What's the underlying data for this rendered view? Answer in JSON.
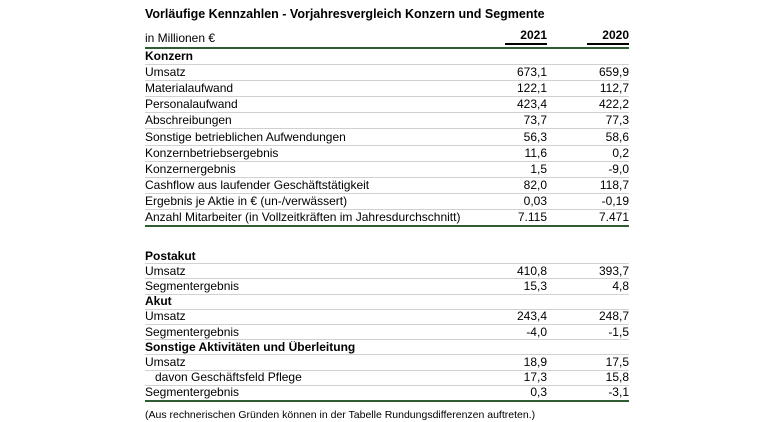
{
  "title": "Vorläufige Kennzahlen - Vorjahresvergleich Konzern und Segmente",
  "unit_label": "in Millionen €",
  "columns": [
    "2021",
    "2020"
  ],
  "colors": {
    "accent_line": "#2f5c33",
    "row_line": "#ccd4cb",
    "text": "#000000"
  },
  "blocks": [
    {
      "rows": [
        {
          "type": "section",
          "label": "Konzern",
          "v2021": "",
          "v2020": ""
        },
        {
          "type": "data",
          "label": "Umsatz",
          "v2021": "673,1",
          "v2020": "659,9"
        },
        {
          "type": "data",
          "label": "Materialaufwand",
          "v2021": "122,1",
          "v2020": "112,7"
        },
        {
          "type": "data",
          "label": "Personalaufwand",
          "v2021": "423,4",
          "v2020": "422,2"
        },
        {
          "type": "data",
          "label": "Abschreibungen",
          "v2021": "73,7",
          "v2020": "77,3"
        },
        {
          "type": "data",
          "label": "Sonstige betrieblichen Aufwendungen",
          "v2021": "56,3",
          "v2020": "58,6"
        },
        {
          "type": "data",
          "label": "Konzernbetriebsergebnis",
          "v2021": "11,6",
          "v2020": "0,2"
        },
        {
          "type": "data",
          "label": "Konzernergebnis",
          "v2021": "1,5",
          "v2020": "-9,0"
        },
        {
          "type": "data",
          "label": "Cashflow aus laufender Geschäftstätigkeit",
          "v2021": "82,0",
          "v2020": "118,7"
        },
        {
          "type": "data",
          "label": "Ergebnis je Aktie in € (un-/verwässert)",
          "v2021": "0,03",
          "v2020": "-0,19"
        },
        {
          "type": "data",
          "label": "Anzahl Mitarbeiter (in Vollzeitkräften im Jahresdurchschnitt)",
          "v2021": "7.115",
          "v2020": "7.471"
        }
      ]
    },
    {
      "rows": [
        {
          "type": "section",
          "label": "Postakut",
          "v2021": "",
          "v2020": ""
        },
        {
          "type": "data",
          "label": "Umsatz",
          "v2021": "410,8",
          "v2020": "393,7"
        },
        {
          "type": "data",
          "label": "Segmentergebnis",
          "v2021": "15,3",
          "v2020": "4,8"
        },
        {
          "type": "section",
          "label": "Akut",
          "v2021": "",
          "v2020": ""
        },
        {
          "type": "data",
          "label": "Umsatz",
          "v2021": "243,4",
          "v2020": "248,7"
        },
        {
          "type": "data",
          "label": "Segmentergebnis",
          "v2021": "-4,0",
          "v2020": "-1,5"
        },
        {
          "type": "section",
          "label": "Sonstige Aktivitäten und Überleitung",
          "v2021": "",
          "v2020": ""
        },
        {
          "type": "data",
          "label": "Umsatz",
          "v2021": "18,9",
          "v2020": "17,5"
        },
        {
          "type": "data",
          "label": "davon Geschäftsfeld Pflege",
          "indent": true,
          "v2021": "17,3",
          "v2020": "15,8"
        },
        {
          "type": "data",
          "label": "Segmentergebnis",
          "v2021": "0,3",
          "v2020": "-3,1"
        }
      ]
    }
  ],
  "footnote": "(Aus rechnerischen Gründen können in der Tabelle Rundungsdifferenzen auftreten.)"
}
